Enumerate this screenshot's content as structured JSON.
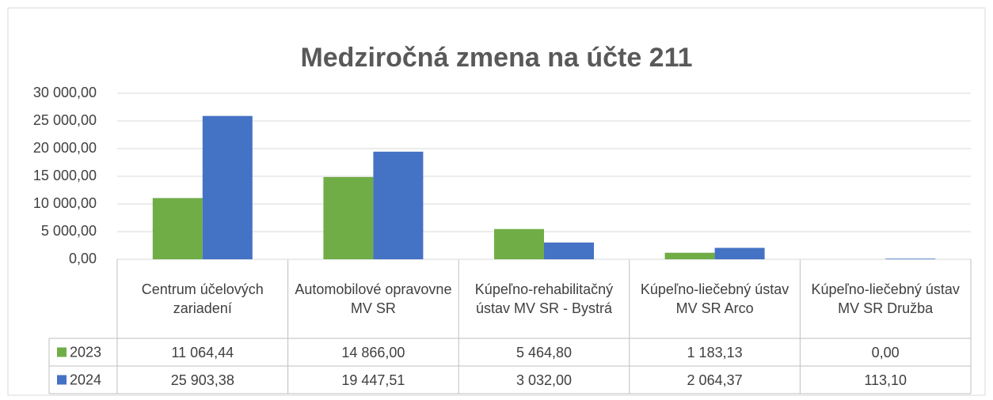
{
  "chart_data": {
    "type": "bar",
    "title": "Medziročná zmena na účte 211",
    "categories": [
      "Centrum účelových zariadení",
      "Automobilové opravovne MV SR",
      "Kúpeľno-rehabilitačný ústav MV SR - Bystrá",
      "Kúpeľno-liečebný ústav MV SR Arco",
      "Kúpeľno-liečebný ústav MV SR Družba"
    ],
    "series": [
      {
        "name": "2023",
        "color": "#70ad47",
        "values": [
          11064.44,
          14866.0,
          5464.8,
          1183.13,
          0.0
        ],
        "value_labels": [
          "11 064,44",
          "14 866,00",
          "5 464,80",
          "1 183,13",
          "0,00"
        ]
      },
      {
        "name": "2024",
        "color": "#4472c4",
        "values": [
          25903.38,
          19447.51,
          3032.0,
          2064.37,
          113.1
        ],
        "value_labels": [
          "25 903,38",
          "19 447,51",
          "3 032,00",
          "2 064,37",
          "113,10"
        ]
      }
    ],
    "ylim": [
      0,
      30000
    ],
    "yticks": [
      {
        "value": 0,
        "label": "0,00"
      },
      {
        "value": 5000,
        "label": "5 000,00"
      },
      {
        "value": 10000,
        "label": "10 000,00"
      },
      {
        "value": 15000,
        "label": "15 000,00"
      },
      {
        "value": 20000,
        "label": "20 000,00"
      },
      {
        "value": 25000,
        "label": "25 000,00"
      },
      {
        "value": 30000,
        "label": "30 000,00"
      }
    ],
    "grid": true
  }
}
